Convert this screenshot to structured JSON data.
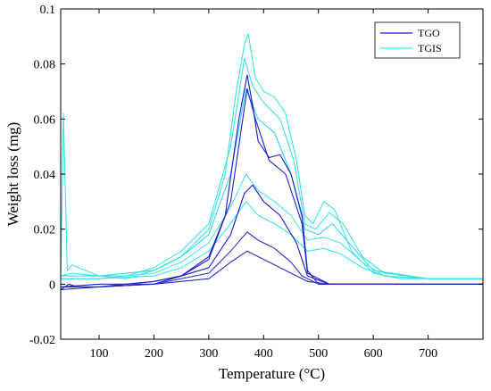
{
  "chart_data": {
    "type": "line",
    "title": "",
    "xlabel": "Temperature (°C)",
    "ylabel": "Weight loss (mg)",
    "xlim": [
      30,
      800
    ],
    "ylim": [
      -0.02,
      0.1
    ],
    "xticks": [
      100,
      200,
      300,
      400,
      500,
      600,
      700
    ],
    "yticks": [
      -0.02,
      0,
      0.02,
      0.04,
      0.06,
      0.08,
      0.1
    ],
    "ytick_labels": [
      "-0.02",
      "0",
      "0.02",
      "0.04",
      "0.06",
      "0.08",
      "0.1"
    ],
    "grid": false,
    "legend_position": "top-right",
    "legend": [
      {
        "label": "TGO",
        "color": "#1a1ad2"
      },
      {
        "label": "TGIS",
        "color": "#36e6e6"
      }
    ],
    "series": [
      {
        "name": "TGO",
        "color": "#1a1ad2",
        "x": [
          30,
          45,
          60,
          100,
          150,
          200,
          250,
          300,
          330,
          355,
          370,
          380,
          390,
          410,
          430,
          450,
          470,
          480,
          500,
          550,
          600,
          650,
          700,
          750,
          800
        ],
        "y": [
          -0.002,
          0.0,
          -0.001,
          -0.001,
          0.0,
          0.001,
          0.003,
          0.01,
          0.025,
          0.06,
          0.076,
          0.065,
          0.052,
          0.046,
          0.047,
          0.04,
          0.025,
          0.005,
          0.0,
          0.0,
          0.0,
          0.0,
          0.0,
          0.0,
          0.0
        ]
      },
      {
        "name": "TGO",
        "color": "#2020c8",
        "x": [
          30,
          100,
          200,
          250,
          300,
          340,
          370,
          385,
          410,
          440,
          470,
          480,
          520,
          600,
          700,
          800
        ],
        "y": [
          -0.001,
          -0.001,
          0.001,
          0.003,
          0.009,
          0.03,
          0.071,
          0.06,
          0.045,
          0.04,
          0.022,
          0.004,
          0.0,
          0.0,
          0.0,
          0.0
        ]
      },
      {
        "name": "TGO",
        "color": "#1a1ad2",
        "x": [
          30,
          100,
          200,
          300,
          340,
          365,
          380,
          400,
          430,
          460,
          480,
          520,
          600,
          700,
          800
        ],
        "y": [
          -0.002,
          -0.001,
          0.0,
          0.006,
          0.018,
          0.033,
          0.036,
          0.03,
          0.025,
          0.015,
          0.003,
          0.0,
          0.0,
          0.0,
          0.0
        ]
      },
      {
        "name": "TGO",
        "color": "#3030c0",
        "x": [
          30,
          100,
          200,
          300,
          340,
          370,
          390,
          420,
          450,
          470,
          500,
          600,
          700,
          800
        ],
        "y": [
          -0.001,
          -0.001,
          0.0,
          0.004,
          0.012,
          0.019,
          0.016,
          0.013,
          0.008,
          0.003,
          0.0,
          0.0,
          0.0,
          0.0
        ]
      },
      {
        "name": "TGO",
        "color": "#2828c8",
        "x": [
          30,
          100,
          200,
          300,
          340,
          370,
          390,
          420,
          450,
          480,
          520,
          600,
          700,
          800
        ],
        "y": [
          -0.001,
          0.0,
          0.0,
          0.002,
          0.008,
          0.012,
          0.01,
          0.007,
          0.004,
          0.001,
          0.0,
          0.0,
          0.0,
          0.0
        ]
      },
      {
        "name": "TGIS",
        "color": "#36e6e6",
        "x": [
          30,
          35,
          42,
          50,
          100,
          150,
          200,
          250,
          300,
          330,
          350,
          365,
          372,
          385,
          400,
          420,
          440,
          460,
          475,
          490,
          510,
          530,
          560,
          600,
          650,
          700,
          750,
          800
        ],
        "y": [
          0.002,
          0.062,
          0.005,
          0.007,
          0.003,
          0.002,
          0.005,
          0.01,
          0.02,
          0.04,
          0.07,
          0.087,
          0.091,
          0.075,
          0.07,
          0.068,
          0.062,
          0.045,
          0.025,
          0.022,
          0.03,
          0.027,
          0.012,
          0.004,
          0.002,
          0.002,
          0.002,
          0.002
        ]
      },
      {
        "name": "TGIS",
        "color": "#40e0e0",
        "x": [
          30,
          50,
          100,
          150,
          200,
          250,
          300,
          340,
          365,
          380,
          400,
          430,
          455,
          475,
          495,
          520,
          545,
          580,
          620,
          700,
          800
        ],
        "y": [
          0.003,
          0.004,
          0.003,
          0.003,
          0.006,
          0.012,
          0.022,
          0.05,
          0.082,
          0.072,
          0.066,
          0.06,
          0.045,
          0.022,
          0.02,
          0.026,
          0.022,
          0.01,
          0.004,
          0.002,
          0.002
        ]
      },
      {
        "name": "TGIS",
        "color": "#30d8e8",
        "x": [
          30,
          100,
          200,
          250,
          300,
          340,
          368,
          390,
          420,
          450,
          475,
          500,
          525,
          560,
          600,
          700,
          800
        ],
        "y": [
          0.003,
          0.003,
          0.005,
          0.01,
          0.018,
          0.04,
          0.071,
          0.06,
          0.055,
          0.04,
          0.02,
          0.018,
          0.022,
          0.014,
          0.005,
          0.002,
          0.002
        ]
      },
      {
        "name": "TGIS",
        "color": "#4ae6e6",
        "x": [
          30,
          100,
          200,
          250,
          300,
          340,
          368,
          390,
          420,
          450,
          480,
          510,
          540,
          580,
          620,
          700,
          800
        ],
        "y": [
          0.002,
          0.002,
          0.004,
          0.008,
          0.015,
          0.028,
          0.04,
          0.034,
          0.03,
          0.025,
          0.016,
          0.017,
          0.015,
          0.008,
          0.003,
          0.002,
          0.002
        ]
      },
      {
        "name": "TGIS",
        "color": "#36e6e6",
        "x": [
          30,
          100,
          200,
          250,
          300,
          340,
          368,
          390,
          420,
          450,
          480,
          510,
          540,
          580,
          620,
          700,
          800
        ],
        "y": [
          0.002,
          0.002,
          0.003,
          0.006,
          0.012,
          0.022,
          0.03,
          0.025,
          0.022,
          0.018,
          0.012,
          0.013,
          0.011,
          0.006,
          0.003,
          0.002,
          0.002
        ]
      }
    ]
  }
}
